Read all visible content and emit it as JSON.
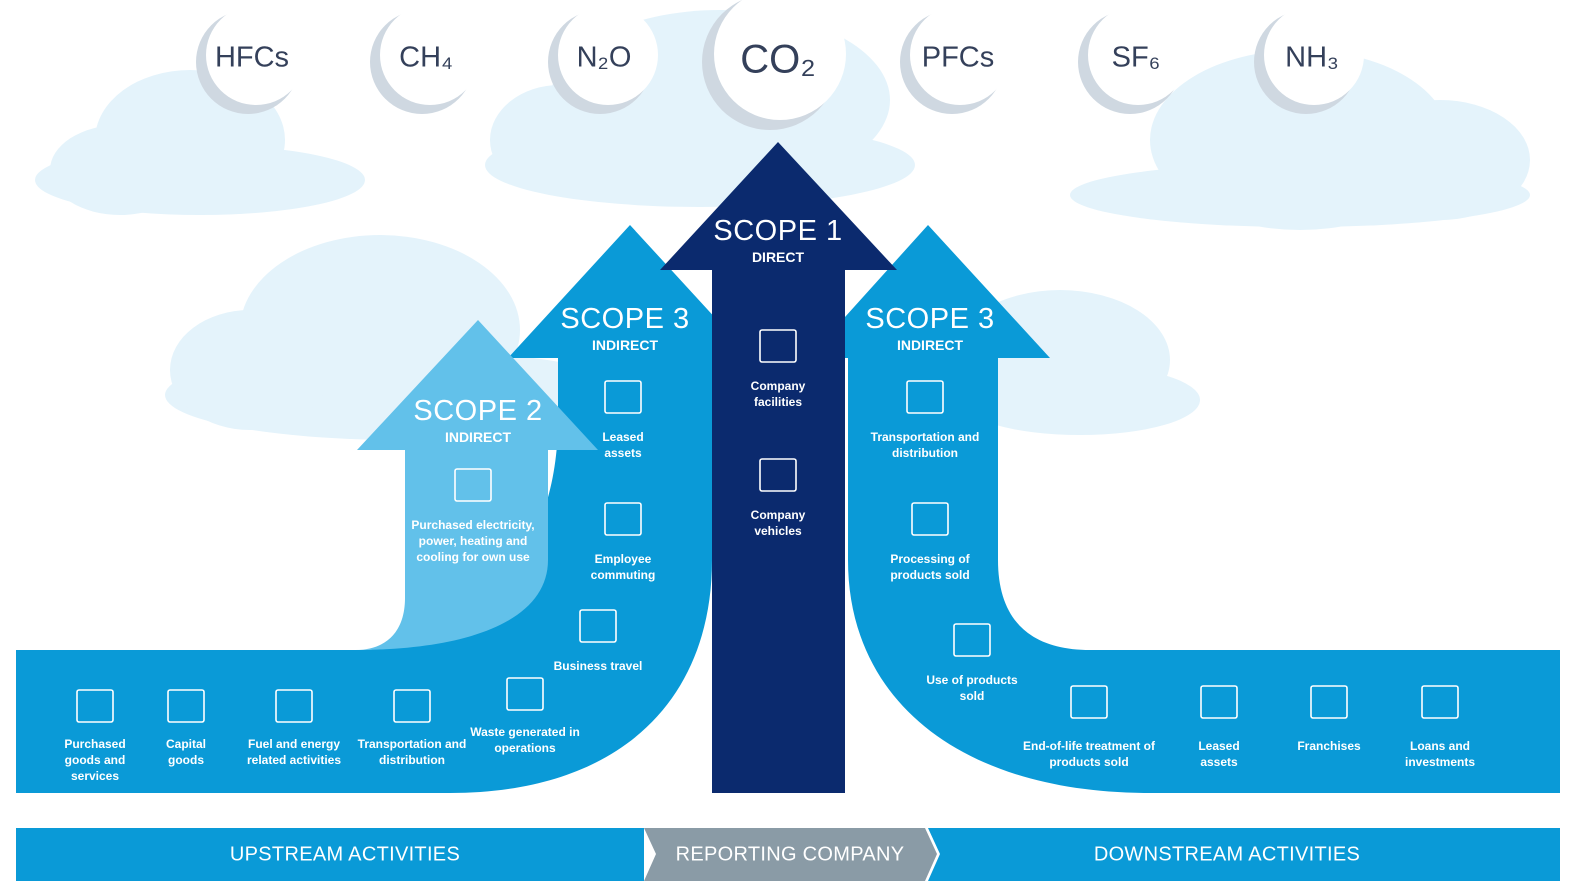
{
  "gases": [
    "HFCs",
    "CH₄",
    "N₂O",
    "CO₂",
    "PFCs",
    "SF₆",
    "NH₃"
  ],
  "scopes": [
    {
      "title": "SCOPE 2",
      "subtitle": "INDIRECT",
      "items": [
        "Purchased electricity, power, heating and cooling for own use"
      ]
    },
    {
      "title": "SCOPE 3",
      "subtitle": "INDIRECT",
      "items": [
        "Leased assets",
        "Employee commuting",
        "Business travel"
      ]
    },
    {
      "title": "SCOPE 1",
      "subtitle": "DIRECT",
      "items": [
        "Company facilities",
        "Company vehicles"
      ]
    },
    {
      "title": "SCOPE 3",
      "subtitle": "INDIRECT",
      "items": [
        "Transportation and distribution",
        "Processing of products sold",
        "Use of products sold"
      ]
    }
  ],
  "upstream_items": [
    "Purchased goods and services",
    "Capital goods",
    "Fuel and energy related activities",
    "Transportation and distribution",
    "Waste generated in operations"
  ],
  "downstream_items": [
    "End-of-life treatment of products sold",
    "Leased assets",
    "Franchises",
    "Loans and investments"
  ],
  "footer": [
    "UPSTREAM ACTIVITIES",
    "REPORTING COMPANY",
    "DOWNSTREAM ACTIVITIES"
  ]
}
